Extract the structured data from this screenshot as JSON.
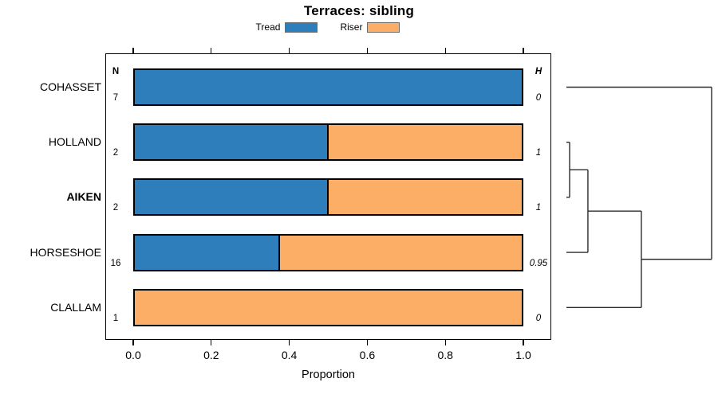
{
  "chart_data": {
    "type": "bar",
    "orientation": "horizontal",
    "stacked": true,
    "title": "Terraces: sibling",
    "xlabel": "Proportion",
    "xlim": [
      0,
      1
    ],
    "x_ticks": [
      0,
      0.2,
      0.4,
      0.6,
      0.8,
      1.0
    ],
    "x_tick_labels": [
      "0.0",
      "0.2",
      "0.4",
      "0.6",
      "0.8",
      "1.0"
    ],
    "ticks_mirrored_top": true,
    "grid": false,
    "categories": [
      "COHASSET",
      "HOLLAND",
      "AIKEN",
      "HORSESHOE",
      "CLALLAM"
    ],
    "emphasized_category": "AIKEN",
    "series": [
      {
        "name": "Tread",
        "color": "#2e7ebc",
        "values": [
          1.0,
          0.5,
          0.5,
          0.375,
          0.0
        ]
      },
      {
        "name": "Riser",
        "color": "#fcae66",
        "values": [
          0.0,
          0.5,
          0.5,
          0.625,
          1.0
        ]
      }
    ],
    "n_column": {
      "header": "N",
      "values": [
        "7",
        "2",
        "2",
        "16",
        "1"
      ]
    },
    "h_column": {
      "header": "H",
      "values": [
        "0",
        "1",
        "1",
        "0.95",
        "0"
      ]
    },
    "legend": [
      {
        "label": "Tread",
        "color": "#2e7ebc"
      },
      {
        "label": "Riser",
        "color": "#fcae66"
      }
    ],
    "bar_border_color": "#000000",
    "dendrogram": {
      "position": "right",
      "leaves": [
        "COHASSET",
        "HOLLAND",
        "AIKEN",
        "HORSESHOE",
        "CLALLAM"
      ],
      "merges": [
        {
          "a": "HOLLAND",
          "b": "AIKEN",
          "height": 0.022
        },
        {
          "a": "M0",
          "b": "HORSESHOE",
          "height": 0.148
        },
        {
          "a": "M1",
          "b": "CLALLAM",
          "height": 0.516
        },
        {
          "a": "COHASSET",
          "b": "M2",
          "height": 1.0
        }
      ]
    }
  }
}
